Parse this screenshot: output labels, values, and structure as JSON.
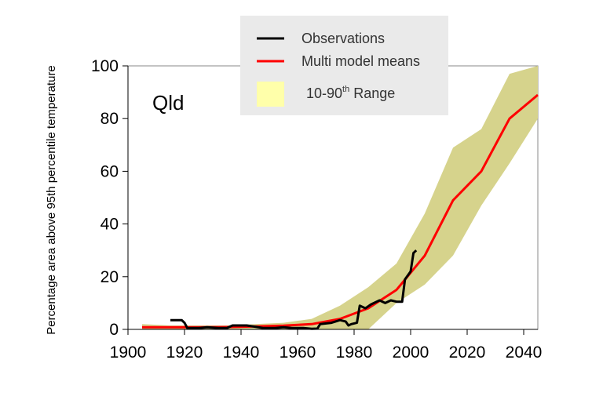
{
  "chart_data": {
    "type": "area",
    "region_label": "Qld",
    "ylabel": "Percentage area above 95th percentile temperature",
    "xlim": [
      1900,
      2045
    ],
    "ylim": [
      0,
      100
    ],
    "xticks": [
      1900,
      1920,
      1940,
      1960,
      1980,
      2000,
      2020,
      2040
    ],
    "yticks": [
      0,
      20,
      40,
      60,
      80,
      100
    ],
    "legend": {
      "placement": "top-center",
      "entries": [
        {
          "key": "observations",
          "label": "Observations"
        },
        {
          "key": "multi_model",
          "label": "Multi model means"
        },
        {
          "key": "range",
          "label": "10-90",
          "label_sup": "th",
          "label_suffix": " Range"
        }
      ]
    },
    "colors": {
      "observations": "#000000",
      "multi_model": "#ff0000",
      "range_fill": "#d6d38c",
      "legend_range_swatch": "#ffffaa",
      "legend_bg": "#eaeaea"
    },
    "series": [
      {
        "key": "range",
        "upper": [
          [
            1905,
            2
          ],
          [
            1915,
            1.5
          ],
          [
            1925,
            1.5
          ],
          [
            1935,
            1.5
          ],
          [
            1945,
            2
          ],
          [
            1955,
            2.5
          ],
          [
            1965,
            4
          ],
          [
            1975,
            9
          ],
          [
            1985,
            16
          ],
          [
            1995,
            25
          ],
          [
            2005,
            44
          ],
          [
            2015,
            69
          ],
          [
            2025,
            76
          ],
          [
            2035,
            97
          ],
          [
            2045,
            100
          ]
        ],
        "lower": [
          [
            1905,
            0
          ],
          [
            1915,
            0
          ],
          [
            1925,
            0
          ],
          [
            1935,
            0
          ],
          [
            1945,
            0
          ],
          [
            1955,
            0
          ],
          [
            1965,
            0
          ],
          [
            1975,
            0
          ],
          [
            1985,
            0
          ],
          [
            1995,
            10
          ],
          [
            2005,
            17
          ],
          [
            2015,
            28
          ],
          [
            2025,
            47
          ],
          [
            2035,
            63
          ],
          [
            2045,
            80
          ]
        ]
      },
      {
        "key": "multi_model",
        "points": [
          [
            1905,
            0.8
          ],
          [
            1915,
            0.8
          ],
          [
            1925,
            0.8
          ],
          [
            1935,
            0.9
          ],
          [
            1945,
            1.1
          ],
          [
            1955,
            1.4
          ],
          [
            1965,
            2
          ],
          [
            1975,
            4
          ],
          [
            1985,
            8
          ],
          [
            1995,
            15
          ],
          [
            2005,
            28
          ],
          [
            2015,
            49
          ],
          [
            2025,
            60
          ],
          [
            2035,
            80
          ],
          [
            2045,
            89
          ]
        ]
      },
      {
        "key": "observations",
        "points": [
          [
            1915,
            3.5
          ],
          [
            1919,
            3.5
          ],
          [
            1920,
            2.5
          ],
          [
            1921,
            0.5
          ],
          [
            1925,
            0.5
          ],
          [
            1928,
            0.8
          ],
          [
            1932,
            0.5
          ],
          [
            1935,
            0.5
          ],
          [
            1937,
            1.5
          ],
          [
            1942,
            1.5
          ],
          [
            1945,
            1.0
          ],
          [
            1948,
            0.5
          ],
          [
            1952,
            0.5
          ],
          [
            1955,
            0.8
          ],
          [
            1958,
            0.5
          ],
          [
            1962,
            0.5
          ],
          [
            1965,
            0.2
          ],
          [
            1967,
            0.3
          ],
          [
            1968,
            2.0
          ],
          [
            1972,
            2.5
          ],
          [
            1975,
            3.5
          ],
          [
            1977,
            3.0
          ],
          [
            1978,
            1.5
          ],
          [
            1979,
            2.0
          ],
          [
            1981,
            2.5
          ],
          [
            1982,
            9.0
          ],
          [
            1984,
            8.0
          ],
          [
            1986,
            9.5
          ],
          [
            1989,
            11
          ],
          [
            1991,
            10
          ],
          [
            1993,
            11
          ],
          [
            1995,
            10.5
          ],
          [
            1997,
            10.5
          ],
          [
            1998,
            19
          ],
          [
            2000,
            22
          ],
          [
            2001,
            29
          ],
          [
            2002,
            30
          ]
        ]
      }
    ]
  }
}
